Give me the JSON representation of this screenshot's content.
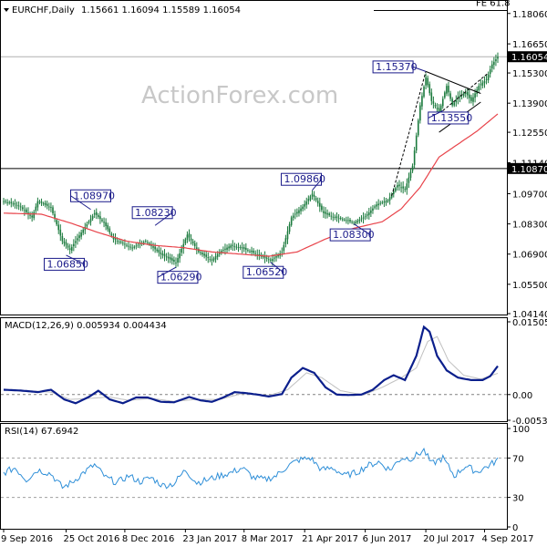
{
  "header": {
    "symbol_tf": "EURCHF,Daily",
    "ohlc": "1.15661 1.16094 1.15589 1.16054"
  },
  "watermark": "ActionForex.com",
  "colors": {
    "candle": "#1b7a3d",
    "ma": "#e8434a",
    "macd": "#0b1f8c",
    "signal": "#c0c0c0",
    "rsi": "#2f8fd8",
    "annotation": "#1a1a8a",
    "price_tag_bg": "#000000"
  },
  "chart_data": [
    {
      "type": "candlestick",
      "panel": "price",
      "ylim": [
        1.0414,
        1.186
      ],
      "y_ticks": [
        "1.18060",
        "1.16650",
        "1.15300",
        "1.13900",
        "1.12550",
        "1.11140",
        "1.09700",
        "1.08300",
        "1.06900",
        "1.05500",
        "1.04140"
      ],
      "x_ticks": [
        {
          "label": "9 Sep 2016",
          "index": 0
        },
        {
          "label": "25 Oct 2016",
          "index": 33
        },
        {
          "label": "8 Dec 2016",
          "index": 64
        },
        {
          "label": "23 Jan 2017",
          "index": 96
        },
        {
          "label": "8 Mar 2017",
          "index": 127
        },
        {
          "label": "21 Apr 2017",
          "index": 159
        },
        {
          "label": "6 Jun 2017",
          "index": 191
        },
        {
          "label": "20 Jul 2017",
          "index": 223
        },
        {
          "label": "4 Sep 2017",
          "index": 254
        }
      ],
      "num_bars": 262,
      "close_anchors": [
        [
          0,
          1.0935
        ],
        [
          8,
          1.0915
        ],
        [
          15,
          1.086
        ],
        [
          18,
          1.0935
        ],
        [
          25,
          1.0905
        ],
        [
          31,
          1.075
        ],
        [
          35,
          1.071
        ],
        [
          41,
          1.079
        ],
        [
          48,
          1.088
        ],
        [
          53,
          1.0835
        ],
        [
          58,
          1.076
        ],
        [
          63,
          1.074
        ],
        [
          68,
          1.072
        ],
        [
          75,
          1.075
        ],
        [
          83,
          1.069
        ],
        [
          91,
          1.065
        ],
        [
          97,
          1.078
        ],
        [
          103,
          1.07
        ],
        [
          110,
          1.066
        ],
        [
          114,
          1.07
        ],
        [
          120,
          1.073
        ],
        [
          125,
          1.072
        ],
        [
          131,
          1.07
        ],
        [
          136,
          1.068
        ],
        [
          141,
          1.066
        ],
        [
          147,
          1.07
        ],
        [
          152,
          1.086
        ],
        [
          158,
          1.091
        ],
        [
          163,
          1.097
        ],
        [
          169,
          1.088
        ],
        [
          175,
          1.086
        ],
        [
          180,
          1.085
        ],
        [
          185,
          1.0835
        ],
        [
          191,
          1.0865
        ],
        [
          197,
          1.092
        ],
        [
          203,
          1.094
        ],
        [
          208,
          1.101
        ],
        [
          212,
          1.099
        ],
        [
          216,
          1.11
        ],
        [
          220,
          1.138
        ],
        [
          223,
          1.151
        ],
        [
          226,
          1.14
        ],
        [
          230,
          1.135
        ],
        [
          234,
          1.147
        ],
        [
          237,
          1.138
        ],
        [
          240,
          1.142
        ],
        [
          244,
          1.144
        ],
        [
          247,
          1.14
        ],
        [
          251,
          1.147
        ],
        [
          255,
          1.15
        ],
        [
          258,
          1.157
        ],
        [
          261,
          1.1605
        ]
      ],
      "ma_anchors": [
        [
          0,
          1.088
        ],
        [
          20,
          1.0875
        ],
        [
          35,
          1.0835
        ],
        [
          50,
          1.079
        ],
        [
          65,
          1.075
        ],
        [
          80,
          1.073
        ],
        [
          95,
          1.072
        ],
        [
          110,
          1.07
        ],
        [
          125,
          1.069
        ],
        [
          140,
          1.068
        ],
        [
          155,
          1.07
        ],
        [
          170,
          1.076
        ],
        [
          185,
          1.081
        ],
        [
          200,
          1.084
        ],
        [
          210,
          1.09
        ],
        [
          220,
          1.1
        ],
        [
          230,
          1.114
        ],
        [
          240,
          1.12
        ],
        [
          250,
          1.126
        ],
        [
          261,
          1.134
        ]
      ],
      "current_price": "1.16054",
      "current_price_value": 1.16054,
      "support_level": "1.10870",
      "support_value": 1.1087,
      "fe_label": "FE 61.8",
      "fe_value": 1.182,
      "annotations": [
        {
          "label": "1.08970",
          "index": 46,
          "price": 1.0897
        },
        {
          "label": "1.06850",
          "index": 33,
          "price": 1.0685
        },
        {
          "label": "1.08230",
          "index": 80,
          "price": 1.0823
        },
        {
          "label": "1.06290",
          "index": 91,
          "price": 1.0629
        },
        {
          "label": "1.06520",
          "index": 141,
          "price": 1.0652
        },
        {
          "label": "1.09860",
          "index": 163,
          "price": 1.0986
        },
        {
          "label": "1.08300",
          "index": 185,
          "price": 1.083
        },
        {
          "label": "1.15370",
          "index": 223,
          "price": 1.1537
        },
        {
          "label": "1.13550",
          "index": 232,
          "price": 1.1355
        }
      ]
    },
    {
      "type": "line",
      "panel": "macd",
      "title": "MACD(12,26,9) 0.005934 0.004434",
      "ylim": [
        -0.00532,
        0.01505
      ],
      "y_ticks": [
        "0.015052",
        "0.00",
        "-0.005321"
      ],
      "macd_anchors": [
        [
          0,
          0.001
        ],
        [
          10,
          0.0008
        ],
        [
          18,
          0.0005
        ],
        [
          25,
          0.001
        ],
        [
          32,
          -0.001
        ],
        [
          38,
          -0.0018
        ],
        [
          45,
          -0.0005
        ],
        [
          50,
          0.0008
        ],
        [
          56,
          -0.001
        ],
        [
          63,
          -0.0018
        ],
        [
          70,
          -0.0006
        ],
        [
          76,
          -0.0006
        ],
        [
          83,
          -0.0015
        ],
        [
          90,
          -0.0016
        ],
        [
          98,
          -0.0005
        ],
        [
          104,
          -0.0012
        ],
        [
          110,
          -0.0015
        ],
        [
          116,
          -0.0006
        ],
        [
          122,
          0.0005
        ],
        [
          128,
          0.0003
        ],
        [
          134,
          0.0
        ],
        [
          140,
          -0.0004
        ],
        [
          147,
          0.0001
        ],
        [
          152,
          0.0035
        ],
        [
          158,
          0.0055
        ],
        [
          164,
          0.0045
        ],
        [
          170,
          0.0015
        ],
        [
          176,
          0.0
        ],
        [
          182,
          -0.0001
        ],
        [
          189,
          0.0
        ],
        [
          195,
          0.001
        ],
        [
          201,
          0.003
        ],
        [
          206,
          0.004
        ],
        [
          212,
          0.003
        ],
        [
          218,
          0.008
        ],
        [
          222,
          0.014
        ],
        [
          225,
          0.013
        ],
        [
          229,
          0.008
        ],
        [
          234,
          0.005
        ],
        [
          240,
          0.0035
        ],
        [
          247,
          0.003
        ],
        [
          253,
          0.003
        ],
        [
          257,
          0.0038
        ],
        [
          261,
          0.0059
        ]
      ],
      "signal_anchors": [
        [
          0,
          0.001
        ],
        [
          12,
          0.0008
        ],
        [
          25,
          0.0005
        ],
        [
          35,
          -0.001
        ],
        [
          45,
          -0.0008
        ],
        [
          56,
          -0.0005
        ],
        [
          66,
          -0.0012
        ],
        [
          78,
          -0.0008
        ],
        [
          90,
          -0.0014
        ],
        [
          102,
          -0.001
        ],
        [
          114,
          -0.001
        ],
        [
          126,
          0.0002
        ],
        [
          140,
          -0.0002
        ],
        [
          150,
          0.001
        ],
        [
          160,
          0.0045
        ],
        [
          168,
          0.0035
        ],
        [
          178,
          0.0008
        ],
        [
          190,
          -0.0001
        ],
        [
          200,
          0.0015
        ],
        [
          210,
          0.0035
        ],
        [
          218,
          0.0055
        ],
        [
          224,
          0.011
        ],
        [
          229,
          0.012
        ],
        [
          235,
          0.007
        ],
        [
          243,
          0.004
        ],
        [
          252,
          0.0032
        ],
        [
          261,
          0.0044
        ]
      ]
    },
    {
      "type": "line",
      "panel": "rsi",
      "title": "RSI(14) 67.6942",
      "ylim": [
        0,
        100
      ],
      "y_ticks": [
        "100",
        "70",
        "30",
        "0"
      ],
      "levels": [
        70,
        30
      ],
      "rsi_anchors": [
        [
          0,
          55
        ],
        [
          6,
          60
        ],
        [
          12,
          48
        ],
        [
          18,
          58
        ],
        [
          25,
          54
        ],
        [
          31,
          40
        ],
        [
          36,
          45
        ],
        [
          42,
          55
        ],
        [
          48,
          63
        ],
        [
          54,
          50
        ],
        [
          60,
          45
        ],
        [
          66,
          52
        ],
        [
          72,
          46
        ],
        [
          78,
          50
        ],
        [
          84,
          42
        ],
        [
          90,
          44
        ],
        [
          96,
          58
        ],
        [
          102,
          45
        ],
        [
          108,
          48
        ],
        [
          114,
          52
        ],
        [
          120,
          55
        ],
        [
          126,
          60
        ],
        [
          132,
          50
        ],
        [
          138,
          48
        ],
        [
          144,
          52
        ],
        [
          150,
          62
        ],
        [
          156,
          68
        ],
        [
          162,
          70
        ],
        [
          168,
          58
        ],
        [
          174,
          60
        ],
        [
          180,
          52
        ],
        [
          186,
          55
        ],
        [
          192,
          62
        ],
        [
          198,
          66
        ],
        [
          204,
          58
        ],
        [
          210,
          70
        ],
        [
          216,
          70
        ],
        [
          222,
          78
        ],
        [
          226,
          64
        ],
        [
          232,
          70
        ],
        [
          238,
          52
        ],
        [
          244,
          62
        ],
        [
          250,
          56
        ],
        [
          256,
          62
        ],
        [
          261,
          68
        ]
      ]
    }
  ]
}
